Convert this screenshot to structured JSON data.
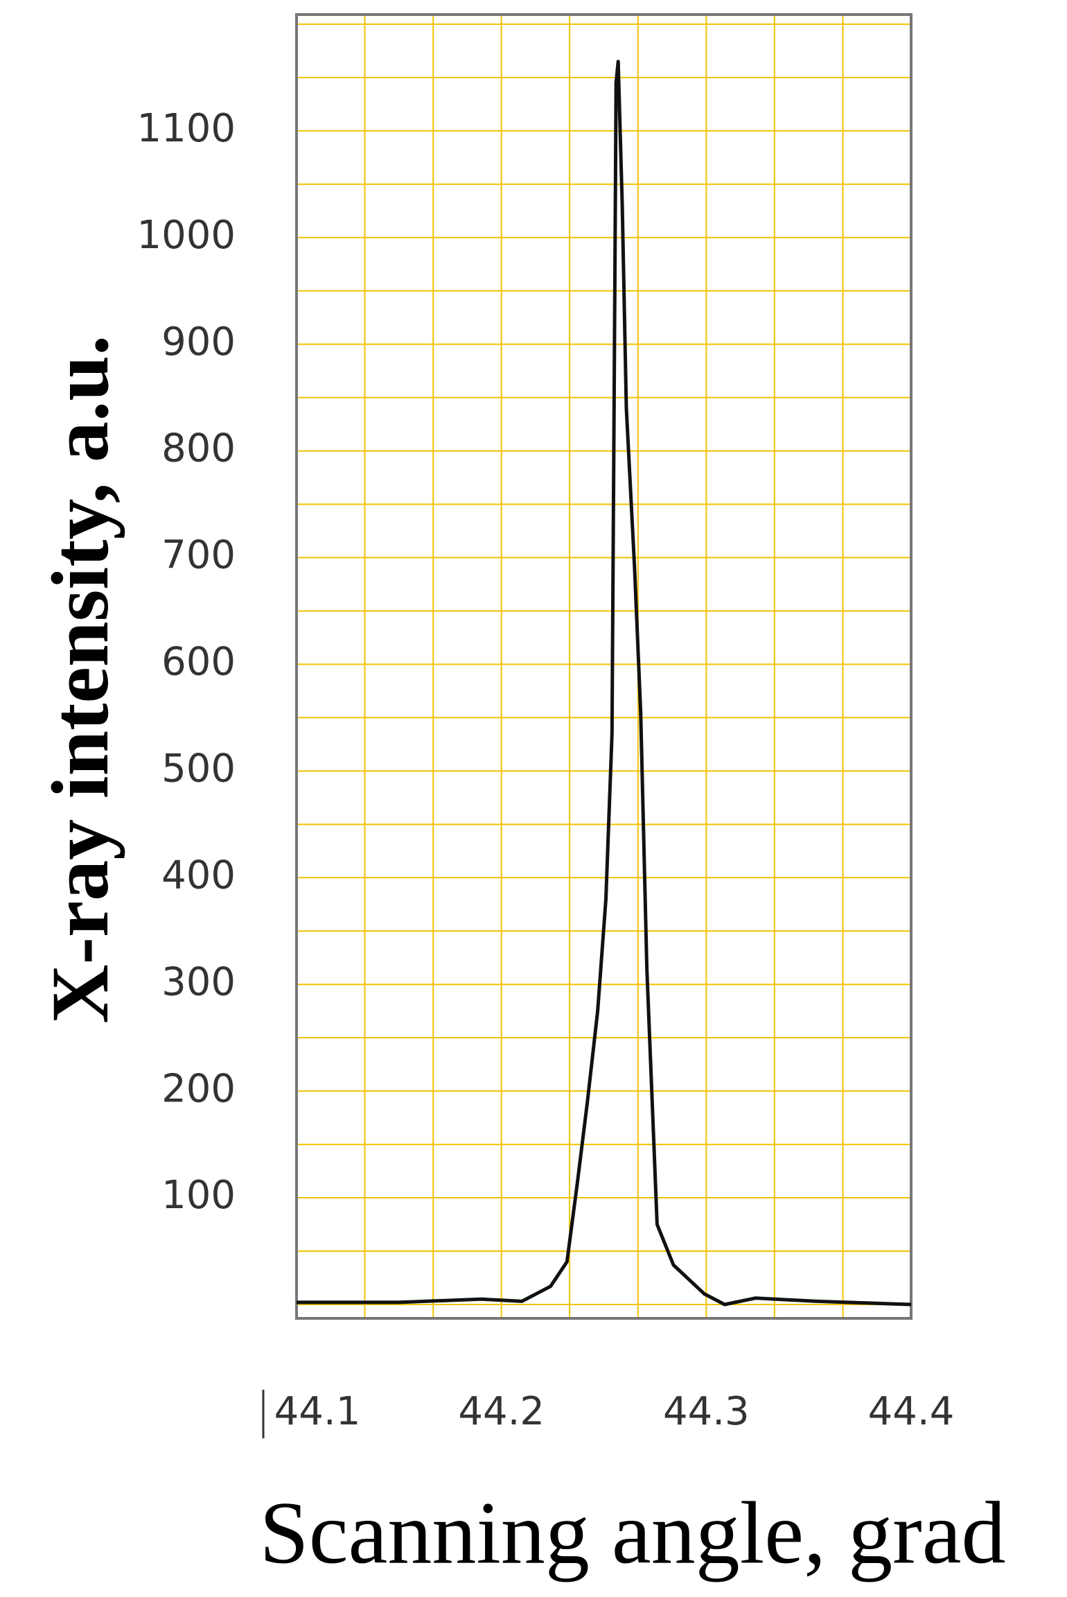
{
  "chart_data": {
    "type": "line",
    "x_label": "Scanning angle, grad",
    "y_label": "X-ray intensity, a.u.",
    "xlim": [
      44.1,
      44.4
    ],
    "xticks": [
      44.1,
      44.2,
      44.3,
      44.4
    ],
    "xminor": [
      44.1333,
      44.1667,
      44.2333,
      44.2667,
      44.3333,
      44.3667
    ],
    "ylim": [
      -13,
      1209
    ],
    "yticks": [
      100,
      200,
      300,
      400,
      500,
      600,
      700,
      800,
      900,
      1000,
      1100
    ],
    "yminor": [
      0,
      50,
      150,
      250,
      350,
      450,
      550,
      650,
      750,
      850,
      950,
      1050,
      1150,
      1200
    ],
    "grid": true,
    "grid_color": "#f2c200",
    "series": [
      {
        "name": "intensity",
        "color": "#111111",
        "x": [
          44.1,
          44.15,
          44.19,
          44.21,
          44.224,
          44.232,
          44.237,
          44.242,
          44.247,
          44.251,
          44.254,
          44.255,
          44.256,
          44.257,
          44.259,
          44.261,
          44.265,
          44.268,
          44.271,
          44.276,
          44.284,
          44.299,
          44.309,
          44.324,
          44.354,
          44.4
        ],
        "values": [
          2,
          2,
          5,
          3,
          17,
          40,
          113,
          190,
          275,
          380,
          535,
          840,
          1145,
          1165,
          1030,
          840,
          690,
          555,
          315,
          75,
          37,
          10,
          0,
          6,
          3,
          0
        ]
      }
    ]
  }
}
